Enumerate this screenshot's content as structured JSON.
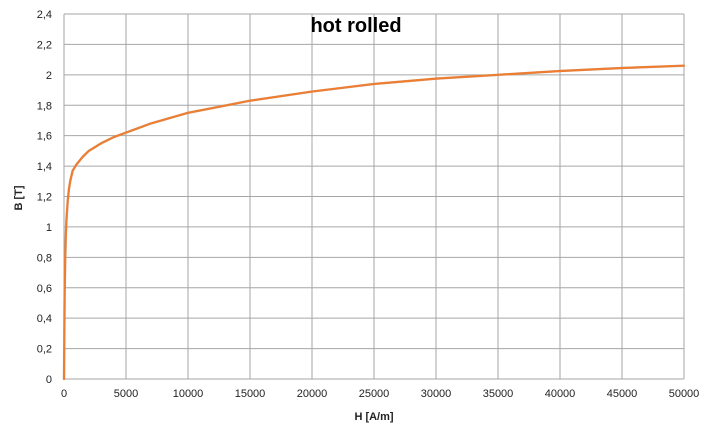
{
  "chart_data": {
    "type": "line",
    "title": "hot rolled",
    "xlabel": "H [A/m]",
    "ylabel": "B [T]",
    "xlim": [
      0,
      50000
    ],
    "ylim": [
      0,
      2.4
    ],
    "x_ticks": [
      0,
      5000,
      10000,
      15000,
      20000,
      25000,
      30000,
      35000,
      40000,
      45000,
      50000
    ],
    "x_tick_labels": [
      "0",
      "5000",
      "10000",
      "15000",
      "20000",
      "25000",
      "30000",
      "35000",
      "40000",
      "45000",
      "50000"
    ],
    "y_ticks": [
      0,
      0.2,
      0.4,
      0.6,
      0.8,
      1.0,
      1.2,
      1.4,
      1.6,
      1.8,
      2.0,
      2.2,
      2.4
    ],
    "y_tick_labels": [
      "0",
      "0,2",
      "0,4",
      "0,6",
      "0,8",
      "1",
      "1,2",
      "1,4",
      "1,6",
      "1,8",
      "2",
      "2,2",
      "2,4"
    ],
    "grid": true,
    "legend": "none",
    "series": [
      {
        "color": "#ED7D31",
        "x": [
          0,
          50,
          100,
          150,
          200,
          300,
          400,
          500,
          700,
          1000,
          1500,
          2000,
          3000,
          4000,
          5000,
          7000,
          10000,
          12500,
          15000,
          20000,
          25000,
          30000,
          35000,
          40000,
          45000,
          50000
        ],
        "y": [
          0,
          0.55,
          0.8,
          0.95,
          1.05,
          1.17,
          1.25,
          1.3,
          1.37,
          1.41,
          1.46,
          1.5,
          1.55,
          1.59,
          1.62,
          1.68,
          1.75,
          1.79,
          1.83,
          1.89,
          1.94,
          1.975,
          2.0,
          2.025,
          2.045,
          2.06
        ]
      }
    ]
  }
}
